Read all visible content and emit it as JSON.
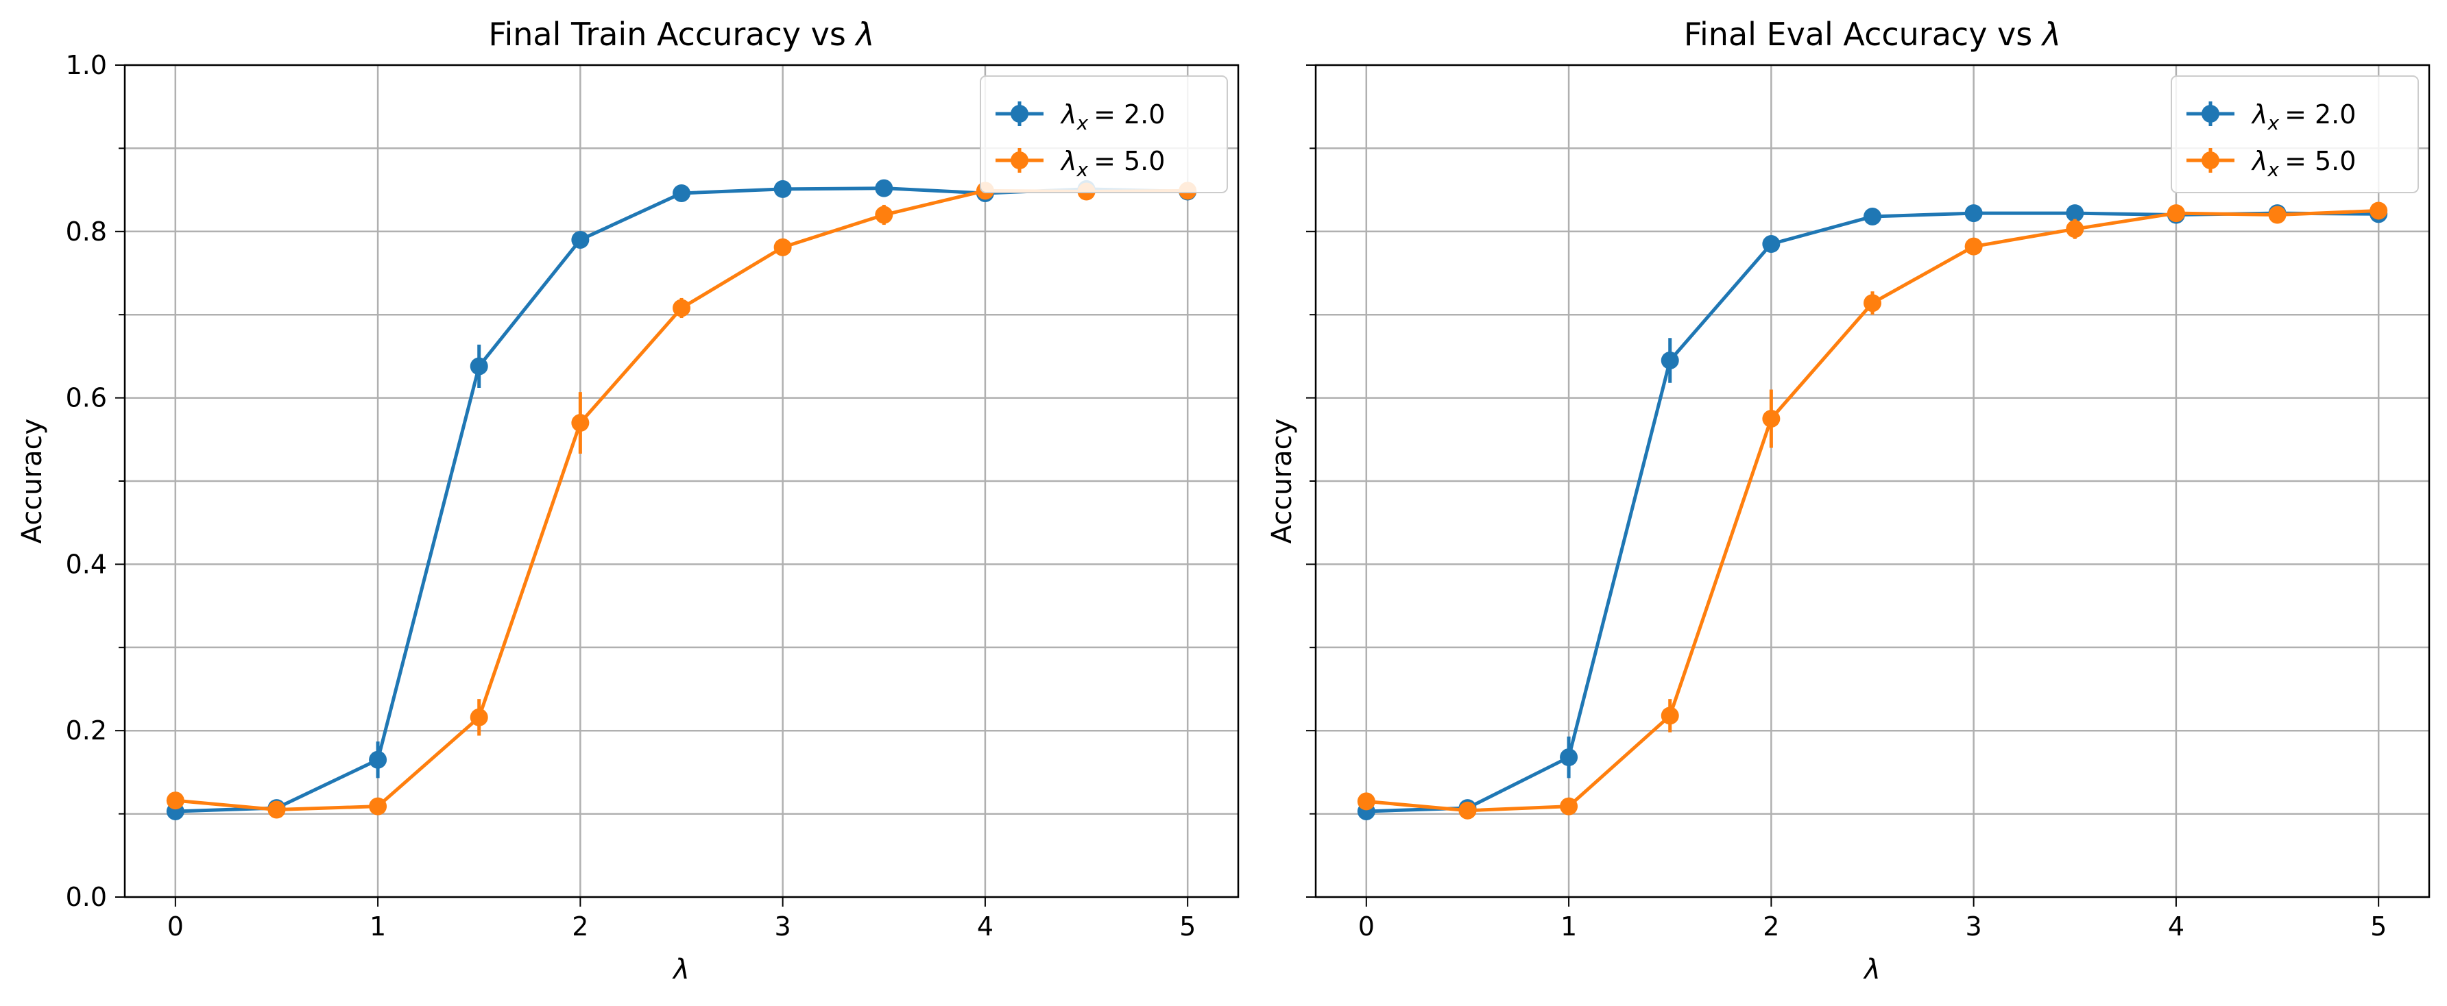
{
  "chart_data": [
    {
      "type": "line",
      "title_text": "Final Train Accuracy vs ",
      "title_symbol": "λ",
      "xlabel": "λ",
      "ylabel": "Accuracy",
      "xlim": [
        -0.25,
        5.25
      ],
      "ylim": [
        0.0,
        1.0
      ],
      "xticks": [
        0,
        1,
        2,
        3,
        4,
        5
      ],
      "xtick_labels": [
        "0",
        "1",
        "2",
        "3",
        "4",
        "5"
      ],
      "yticks": [
        0.0,
        0.2,
        0.4,
        0.6,
        0.8,
        1.0
      ],
      "ytick_labels": [
        "0.0",
        "0.2",
        "0.4",
        "0.6",
        "0.8",
        "1.0"
      ],
      "grid": true,
      "legend_position": "top-right",
      "x": [
        0,
        0.5,
        1,
        1.5,
        2,
        2.5,
        3,
        3.5,
        4,
        4.5,
        5
      ],
      "series": [
        {
          "symbol": "λ",
          "subscript": "x",
          "value_text": "= 2.0",
          "color": "#1f77b4",
          "values": [
            0.103,
            0.107,
            0.165,
            0.638,
            0.79,
            0.846,
            0.851,
            0.852,
            0.846,
            0.851,
            0.848
          ],
          "errors": [
            0.005,
            0.005,
            0.022,
            0.026,
            0.01,
            0.006,
            0.005,
            0.005,
            0.005,
            0.005,
            0.005
          ]
        },
        {
          "symbol": "λ",
          "subscript": "x",
          "value_text": "= 5.0",
          "color": "#ff7f0e",
          "values": [
            0.116,
            0.105,
            0.109,
            0.216,
            0.57,
            0.708,
            0.781,
            0.82,
            0.849,
            0.848,
            0.849
          ],
          "errors": [
            0.005,
            0.005,
            0.005,
            0.022,
            0.037,
            0.012,
            0.009,
            0.012,
            0.006,
            0.005,
            0.005
          ]
        }
      ]
    },
    {
      "type": "line",
      "title_text": "Final Eval Accuracy vs ",
      "title_symbol": "λ",
      "xlabel": "λ",
      "ylabel": "Accuracy",
      "xlim": [
        -0.25,
        5.25
      ],
      "ylim": [
        0.0,
        1.0
      ],
      "xticks": [
        0,
        1,
        2,
        3,
        4,
        5
      ],
      "xtick_labels": [
        "0",
        "1",
        "2",
        "3",
        "4",
        "5"
      ],
      "yticks": [
        0.0,
        0.2,
        0.4,
        0.6,
        0.8,
        1.0
      ],
      "ytick_labels": [
        "",
        "",
        "",
        "",
        "",
        ""
      ],
      "grid": true,
      "legend_position": "top-right",
      "x": [
        0,
        0.5,
        1,
        1.5,
        2,
        2.5,
        3,
        3.5,
        4,
        4.5,
        5
      ],
      "series": [
        {
          "symbol": "λ",
          "subscript": "x",
          "value_text": "= 2.0",
          "color": "#1f77b4",
          "values": [
            0.103,
            0.107,
            0.168,
            0.645,
            0.785,
            0.818,
            0.822,
            0.822,
            0.82,
            0.822,
            0.821
          ],
          "errors": [
            0.005,
            0.005,
            0.025,
            0.027,
            0.01,
            0.006,
            0.005,
            0.005,
            0.005,
            0.005,
            0.005
          ]
        },
        {
          "symbol": "λ",
          "subscript": "x",
          "value_text": "= 5.0",
          "color": "#ff7f0e",
          "values": [
            0.115,
            0.104,
            0.109,
            0.218,
            0.575,
            0.714,
            0.782,
            0.803,
            0.822,
            0.82,
            0.825
          ],
          "errors": [
            0.005,
            0.005,
            0.005,
            0.02,
            0.035,
            0.014,
            0.009,
            0.012,
            0.006,
            0.005,
            0.005
          ]
        }
      ]
    }
  ]
}
